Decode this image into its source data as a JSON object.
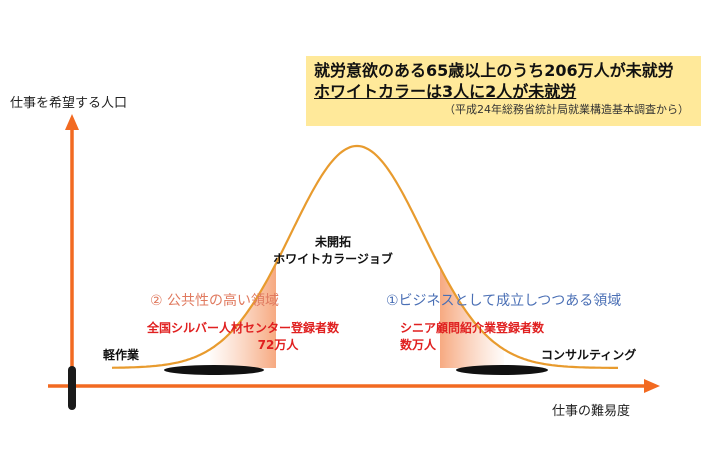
{
  "axes": {
    "y_label": "仕事を希望する人口",
    "x_label": "仕事の難易度"
  },
  "callout": {
    "line1": "就労意欲のある65歳以上のうち206万人が未就労",
    "line2": "ホワイトカラーは3人に2人が未就労",
    "source": "（平成24年総務省統計局就業構造基本調査から）"
  },
  "peak": {
    "line1": "未開拓",
    "line2": "ホワイトカラージョブ"
  },
  "regions": {
    "left_title": "② 公共性の高い領域",
    "right_title": "①ビジネスとして成立しつつある領域"
  },
  "groups": {
    "left_name": "全国シルバー人材センター登録者数",
    "left_count": "72万人",
    "right_name": "シニア顧問紹介業登録者数",
    "right_count": "数万人"
  },
  "endpoints": {
    "left": "軽作業",
    "right": "コンサルティング"
  },
  "colors": {
    "axis": "#f26a21",
    "curve": "#e89b2e",
    "fill": "#f7b48f",
    "callout_bg": "#ffe99a",
    "left_region": "#e07a5f",
    "right_region": "#4a6fb5",
    "highlight": "#e02020"
  }
}
